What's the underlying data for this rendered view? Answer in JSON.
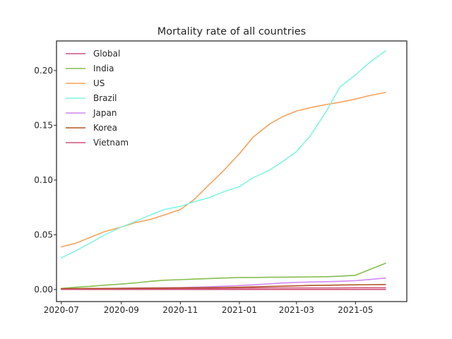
{
  "chart_data": {
    "type": "line",
    "title": "Mortality rate of all countries",
    "xlabel": "",
    "ylabel": "",
    "x_type": "date",
    "xlim": [
      "2020-06-26",
      "2021-06-23"
    ],
    "ylim": [
      -0.011,
      0.227
    ],
    "x_ticks": [
      "2020-07-01",
      "2020-09-01",
      "2020-11-01",
      "2021-01-01",
      "2021-03-01",
      "2021-05-01"
    ],
    "x_tick_labels": [
      "2020-07",
      "2020-09",
      "2020-11",
      "2021-01",
      "2021-03",
      "2021-05"
    ],
    "y_ticks": [
      0.0,
      0.05,
      0.1,
      0.15,
      0.2
    ],
    "y_tick_labels": [
      "0.00",
      "0.05",
      "0.10",
      "0.15",
      "0.20"
    ],
    "grid": false,
    "legend_position": "upper-left",
    "x": [
      "2020-07-01",
      "2020-07-15",
      "2020-08-01",
      "2020-08-15",
      "2020-09-01",
      "2020-09-15",
      "2020-10-01",
      "2020-10-15",
      "2020-11-01",
      "2020-11-15",
      "2020-12-01",
      "2020-12-15",
      "2021-01-01",
      "2021-01-15",
      "2021-02-01",
      "2021-02-15",
      "2021-03-01",
      "2021-03-15",
      "2021-04-01",
      "2021-04-15",
      "2021-05-01",
      "2021-05-15",
      "2021-06-01"
    ],
    "series": [
      {
        "name": "Global",
        "color": "#d0527a",
        "values": [
          0.0005,
          0.0005,
          0.0006,
          0.0006,
          0.0007,
          0.0007,
          0.0008,
          0.0008,
          0.0009,
          0.001,
          0.0011,
          0.0012,
          0.0013,
          0.0014,
          0.0015,
          0.0015,
          0.0015,
          0.0015,
          0.0015,
          0.0015,
          0.0016,
          0.0016,
          0.0016
        ]
      },
      {
        "name": "India",
        "color": "#86bd4f",
        "values": [
          0.001,
          0.002,
          0.003,
          0.004,
          0.005,
          0.006,
          0.0075,
          0.0085,
          0.009,
          0.0095,
          0.01,
          0.0105,
          0.011,
          0.011,
          0.0112,
          0.0113,
          0.0114,
          0.0115,
          0.0117,
          0.0122,
          0.013,
          0.018,
          0.024
        ]
      },
      {
        "name": "US",
        "color": "#f5a35c",
        "values": [
          0.039,
          0.042,
          0.048,
          0.053,
          0.057,
          0.061,
          0.064,
          0.068,
          0.073,
          0.082,
          0.096,
          0.108,
          0.124,
          0.139,
          0.151,
          0.158,
          0.163,
          0.166,
          0.169,
          0.171,
          0.174,
          0.177,
          0.18
        ]
      },
      {
        "name": "Brazil",
        "color": "#7ff7e0",
        "values": [
          0.029,
          0.035,
          0.043,
          0.05,
          0.057,
          0.062,
          0.068,
          0.073,
          0.076,
          0.08,
          0.084,
          0.089,
          0.094,
          0.102,
          0.109,
          0.117,
          0.126,
          0.14,
          0.163,
          0.185,
          0.196,
          0.207,
          0.218
        ]
      },
      {
        "name": "Japan",
        "color": "#d287f4",
        "values": [
          0.0005,
          0.0006,
          0.0008,
          0.001,
          0.0012,
          0.0014,
          0.0015,
          0.0016,
          0.0018,
          0.0021,
          0.0025,
          0.003,
          0.0036,
          0.0043,
          0.0052,
          0.006,
          0.0065,
          0.0069,
          0.0072,
          0.0075,
          0.0081,
          0.0091,
          0.0105
        ]
      },
      {
        "name": "Korea",
        "color": "#b05524",
        "values": [
          0.0008,
          0.0009,
          0.001,
          0.001,
          0.0011,
          0.0012,
          0.0013,
          0.0014,
          0.0015,
          0.0016,
          0.0017,
          0.0018,
          0.0021,
          0.0024,
          0.0028,
          0.0031,
          0.0034,
          0.0037,
          0.0039,
          0.0041,
          0.0043,
          0.0044,
          0.0045
        ]
      },
      {
        "name": "Vietnam",
        "color": "#d0527a",
        "values": [
          0.0001,
          0.0001,
          0.0001,
          0.0001,
          0.0001,
          0.0001,
          0.0001,
          0.0001,
          0.0001,
          0.0001,
          0.0001,
          0.0001,
          0.0001,
          0.0001,
          0.0001,
          0.0001,
          0.0001,
          0.0001,
          0.0001,
          0.0001,
          0.0001,
          0.0001,
          0.0001
        ]
      }
    ]
  }
}
